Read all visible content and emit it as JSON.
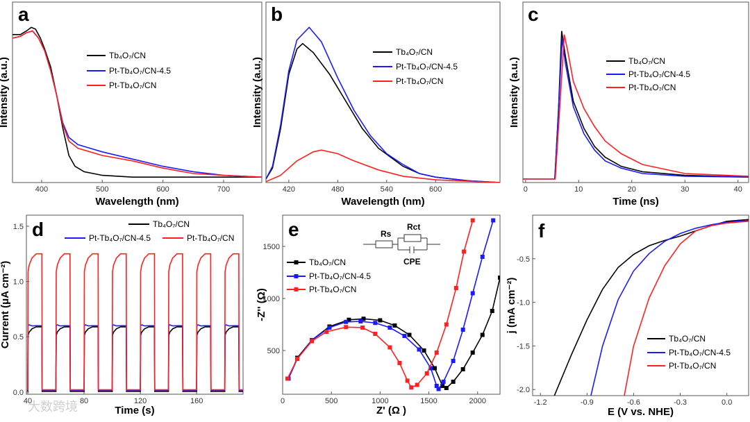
{
  "colors": {
    "black": "#000000",
    "blue": "#1a1aff",
    "red": "#ff2020"
  },
  "watermark": "大数跨境",
  "chart_data": [
    {
      "panel": "a",
      "type": "line",
      "xlabel": "Wavelength (nm)",
      "ylabel": "Intensity (a.u.)",
      "xlim": [
        352,
        763
      ],
      "ylim": [
        0,
        1
      ],
      "xticks": [
        "400",
        "500",
        "600",
        "700"
      ],
      "yticks": [],
      "series": [
        {
          "name": "Tb₄O₇/CN",
          "color": "black",
          "points": [
            [
              352,
              0.82
            ],
            [
              365,
              0.82
            ],
            [
              375,
              0.84
            ],
            [
              383,
              0.86
            ],
            [
              390,
              0.85
            ],
            [
              398,
              0.8
            ],
            [
              405,
              0.74
            ],
            [
              415,
              0.64
            ],
            [
              425,
              0.48
            ],
            [
              435,
              0.3
            ],
            [
              445,
              0.15
            ],
            [
              455,
              0.09
            ],
            [
              470,
              0.06
            ],
            [
              500,
              0.04
            ],
            [
              550,
              0.03
            ],
            [
              650,
              0.03
            ],
            [
              763,
              0.03
            ]
          ]
        },
        {
          "name": "Pt-Tb₄O₇/CN-4.5",
          "color": "blue",
          "points": [
            [
              352,
              0.8
            ],
            [
              365,
              0.81
            ],
            [
              375,
              0.83
            ],
            [
              385,
              0.84
            ],
            [
              395,
              0.8
            ],
            [
              405,
              0.73
            ],
            [
              415,
              0.62
            ],
            [
              425,
              0.48
            ],
            [
              435,
              0.33
            ],
            [
              445,
              0.25
            ],
            [
              460,
              0.21
            ],
            [
              480,
              0.19
            ],
            [
              500,
              0.17
            ],
            [
              550,
              0.13
            ],
            [
              600,
              0.09
            ],
            [
              650,
              0.06
            ],
            [
              700,
              0.04
            ],
            [
              763,
              0.03
            ]
          ]
        },
        {
          "name": "Pt-Tb₄O₇/CN",
          "color": "red",
          "points": [
            [
              352,
              0.8
            ],
            [
              365,
              0.81
            ],
            [
              375,
              0.83
            ],
            [
              385,
              0.84
            ],
            [
              395,
              0.8
            ],
            [
              405,
              0.73
            ],
            [
              415,
              0.62
            ],
            [
              425,
              0.48
            ],
            [
              435,
              0.32
            ],
            [
              445,
              0.23
            ],
            [
              460,
              0.19
            ],
            [
              480,
              0.17
            ],
            [
              500,
              0.15
            ],
            [
              550,
              0.12
            ],
            [
              600,
              0.08
            ],
            [
              650,
              0.05
            ],
            [
              700,
              0.04
            ],
            [
              763,
              0.03
            ]
          ]
        }
      ]
    },
    {
      "panel": "b",
      "type": "line",
      "xlabel": "Wavelength (nm)",
      "ylabel": "Intensity (a.u.)",
      "xlim": [
        392,
        679
      ],
      "ylim": [
        0,
        1
      ],
      "xticks": [
        "420",
        "480",
        "540",
        "600"
      ],
      "yticks": [],
      "series": [
        {
          "name": "Tb₄O₇/CN",
          "color": "black",
          "points": [
            [
              392,
              0.02
            ],
            [
              400,
              0.08
            ],
            [
              410,
              0.3
            ],
            [
              420,
              0.6
            ],
            [
              430,
              0.74
            ],
            [
              437,
              0.77
            ],
            [
              450,
              0.72
            ],
            [
              470,
              0.6
            ],
            [
              490,
              0.45
            ],
            [
              510,
              0.3
            ],
            [
              530,
              0.19
            ],
            [
              545,
              0.14
            ],
            [
              560,
              0.09
            ],
            [
              580,
              0.05
            ],
            [
              600,
              0.03
            ],
            [
              640,
              0.01
            ],
            [
              679,
              0.0
            ]
          ]
        },
        {
          "name": "Pt-Tb₄O₇/CN-4.5",
          "color": "blue",
          "points": [
            [
              392,
              0.02
            ],
            [
              400,
              0.09
            ],
            [
              410,
              0.32
            ],
            [
              420,
              0.62
            ],
            [
              430,
              0.79
            ],
            [
              445,
              0.86
            ],
            [
              460,
              0.78
            ],
            [
              480,
              0.58
            ],
            [
              500,
              0.4
            ],
            [
              520,
              0.26
            ],
            [
              540,
              0.16
            ],
            [
              560,
              0.1
            ],
            [
              580,
              0.05
            ],
            [
              600,
              0.03
            ],
            [
              640,
              0.01
            ],
            [
              679,
              0.0
            ]
          ]
        },
        {
          "name": "Pt-Tb₄O₇/CN",
          "color": "red",
          "points": [
            [
              392,
              0.005
            ],
            [
              410,
              0.04
            ],
            [
              430,
              0.12
            ],
            [
              450,
              0.17
            ],
            [
              460,
              0.18
            ],
            [
              480,
              0.16
            ],
            [
              500,
              0.12
            ],
            [
              530,
              0.07
            ],
            [
              560,
              0.035
            ],
            [
              600,
              0.015
            ],
            [
              679,
              0.0
            ]
          ]
        }
      ]
    },
    {
      "panel": "c",
      "type": "line",
      "xlabel": "Time (ns)",
      "ylabel": "Intensity (a.u.)",
      "xlim": [
        -0.5,
        42
      ],
      "ylim": [
        0,
        1
      ],
      "xticks": [
        "0",
        "10",
        "20",
        "30",
        "40"
      ],
      "yticks": [],
      "series": [
        {
          "name": "Tb₄O₇/CN",
          "color": "black",
          "points": [
            [
              -0.5,
              0.02
            ],
            [
              5.5,
              0.02
            ],
            [
              6.2,
              0.4
            ],
            [
              6.8,
              0.84
            ],
            [
              7.5,
              0.7
            ],
            [
              9,
              0.45
            ],
            [
              11,
              0.3
            ],
            [
              13,
              0.2
            ],
            [
              15,
              0.14
            ],
            [
              18,
              0.09
            ],
            [
              22,
              0.06
            ],
            [
              30,
              0.04
            ],
            [
              42,
              0.03
            ]
          ]
        },
        {
          "name": "Pt-Tb₄O₇/CN-4.5",
          "color": "blue",
          "points": [
            [
              -0.5,
              0.02
            ],
            [
              5.5,
              0.02
            ],
            [
              6.2,
              0.4
            ],
            [
              6.9,
              0.8
            ],
            [
              7.5,
              0.66
            ],
            [
              9,
              0.42
            ],
            [
              11,
              0.27
            ],
            [
              13,
              0.18
            ],
            [
              15,
              0.12
            ],
            [
              18,
              0.08
            ],
            [
              22,
              0.05
            ],
            [
              30,
              0.035
            ],
            [
              42,
              0.03
            ]
          ]
        },
        {
          "name": "Pt-Tb₄O₇/CN",
          "color": "red",
          "points": [
            [
              -0.5,
              0.02
            ],
            [
              5.6,
              0.02
            ],
            [
              6.4,
              0.4
            ],
            [
              7.3,
              0.82
            ],
            [
              8,
              0.72
            ],
            [
              9,
              0.56
            ],
            [
              11,
              0.41
            ],
            [
              13,
              0.31
            ],
            [
              15,
              0.23
            ],
            [
              18,
              0.16
            ],
            [
              22,
              0.1
            ],
            [
              30,
              0.05
            ],
            [
              42,
              0.035
            ]
          ]
        }
      ]
    },
    {
      "panel": "d",
      "type": "line",
      "xlabel": "Time (s)",
      "ylabel": "Current (μA cm⁻²)",
      "xlim": [
        39,
        193
      ],
      "ylim": [
        -0.02,
        1.6
      ],
      "xticks": [
        "40",
        "80",
        "120",
        "160"
      ],
      "yticks": [
        "0.0",
        "0.5",
        "1.0",
        "1.5"
      ],
      "light_on_start": 40,
      "light_period_s": 20,
      "light_on_duration_s": 10,
      "series": [
        {
          "name": "Tb₄O₇/CN",
          "color": "black",
          "on_level": 0.59,
          "spike": 0.0,
          "off_level": 0.005
        },
        {
          "name": "Pt-Tb₄O₇/CN-4.5",
          "color": "blue",
          "on_level": 0.6,
          "spike": 0.08,
          "off_level": 0.015
        },
        {
          "name": "Pt-Tb₄O₇/CN",
          "color": "red",
          "on_level": 1.25,
          "spike": 0.0,
          "off_level": 0.02
        }
      ]
    },
    {
      "panel": "e",
      "type": "scatter",
      "xlabel": "Z' (Ω )",
      "ylabel": "-Z'' (Ω)",
      "xlim": [
        0,
        2230
      ],
      "ylim": [
        80,
        1800
      ],
      "xticks": [
        "0",
        "500",
        "1000",
        "1500",
        "2000"
      ],
      "yticks": [
        "500",
        "1000",
        "1500"
      ],
      "circuit": {
        "rs": "Rs",
        "rct": "Rct",
        "cpe": "CPE"
      },
      "series": [
        {
          "name": "Tb₄O₇/CN",
          "color": "black",
          "points": [
            [
              60,
              230
            ],
            [
              150,
              430
            ],
            [
              300,
              600
            ],
            [
              480,
              730
            ],
            [
              680,
              795
            ],
            [
              830,
              805
            ],
            [
              1000,
              790
            ],
            [
              1150,
              740
            ],
            [
              1300,
              650
            ],
            [
              1450,
              500
            ],
            [
              1560,
              330
            ],
            [
              1640,
              160
            ],
            [
              1680,
              140
            ],
            [
              1750,
              200
            ],
            [
              1850,
              320
            ],
            [
              1950,
              480
            ],
            [
              2050,
              650
            ],
            [
              2150,
              880
            ],
            [
              2230,
              1200
            ]
          ]
        },
        {
          "name": "Pt-Tb₄O₇/CN-4.5",
          "color": "blue",
          "points": [
            [
              60,
              230
            ],
            [
              150,
              420
            ],
            [
              300,
              600
            ],
            [
              480,
              720
            ],
            [
              650,
              775
            ],
            [
              800,
              780
            ],
            [
              950,
              765
            ],
            [
              1100,
              720
            ],
            [
              1250,
              640
            ],
            [
              1400,
              510
            ],
            [
              1520,
              330
            ],
            [
              1580,
              160
            ],
            [
              1600,
              130
            ],
            [
              1650,
              200
            ],
            [
              1750,
              400
            ],
            [
              1850,
              700
            ],
            [
              1950,
              1050
            ],
            [
              2050,
              1400
            ],
            [
              2160,
              1750
            ]
          ]
        },
        {
          "name": "Pt-Tb₄O₇/CN",
          "color": "red",
          "points": [
            [
              50,
              230
            ],
            [
              150,
              420
            ],
            [
              300,
              590
            ],
            [
              450,
              680
            ],
            [
              650,
              725
            ],
            [
              820,
              720
            ],
            [
              950,
              660
            ],
            [
              1100,
              530
            ],
            [
              1200,
              380
            ],
            [
              1280,
              210
            ],
            [
              1320,
              145
            ],
            [
              1380,
              170
            ],
            [
              1480,
              280
            ],
            [
              1580,
              480
            ],
            [
              1680,
              750
            ],
            [
              1780,
              1100
            ],
            [
              1860,
              1450
            ],
            [
              1950,
              1750
            ]
          ]
        }
      ]
    },
    {
      "panel": "f",
      "type": "line",
      "xlabel": "E (V vs. NHE)",
      "ylabel": "j (mA cm⁻²)",
      "xlim": [
        -1.25,
        0.14
      ],
      "ylim": [
        -2.07,
        0.0
      ],
      "xticks": [
        "-1.2",
        "-0.9",
        "-0.6",
        "-0.3",
        "0.0"
      ],
      "yticks": [
        "-0.5",
        "-1.0",
        "-1.5",
        "-2.0"
      ],
      "series": [
        {
          "name": "Tb₄O₇/CN",
          "color": "black",
          "points": [
            [
              -1.11,
              -2.07
            ],
            [
              -1.0,
              -1.6
            ],
            [
              -0.9,
              -1.2
            ],
            [
              -0.8,
              -0.85
            ],
            [
              -0.7,
              -0.6
            ],
            [
              -0.6,
              -0.45
            ],
            [
              -0.5,
              -0.35
            ],
            [
              -0.4,
              -0.29
            ],
            [
              -0.3,
              -0.24
            ],
            [
              -0.2,
              -0.18
            ],
            [
              -0.1,
              -0.12
            ],
            [
              0,
              -0.07
            ],
            [
              0.14,
              -0.05
            ]
          ]
        },
        {
          "name": "Pt-Tb₄O₇/CN-4.5",
          "color": "blue",
          "points": [
            [
              -0.875,
              -2.07
            ],
            [
              -0.8,
              -1.5
            ],
            [
              -0.7,
              -0.97
            ],
            [
              -0.6,
              -0.64
            ],
            [
              -0.5,
              -0.44
            ],
            [
              -0.4,
              -0.3
            ],
            [
              -0.3,
              -0.21
            ],
            [
              -0.2,
              -0.15
            ],
            [
              -0.1,
              -0.11
            ],
            [
              0,
              -0.08
            ],
            [
              0.14,
              -0.06
            ]
          ]
        },
        {
          "name": "Pt-Tb₄O₇/CN",
          "color": "red",
          "points": [
            [
              -0.66,
              -2.07
            ],
            [
              -0.6,
              -1.5
            ],
            [
              -0.5,
              -0.95
            ],
            [
              -0.4,
              -0.58
            ],
            [
              -0.3,
              -0.33
            ],
            [
              -0.2,
              -0.18
            ],
            [
              -0.1,
              -0.12
            ],
            [
              0,
              -0.09
            ],
            [
              0.14,
              -0.07
            ]
          ]
        }
      ]
    }
  ]
}
